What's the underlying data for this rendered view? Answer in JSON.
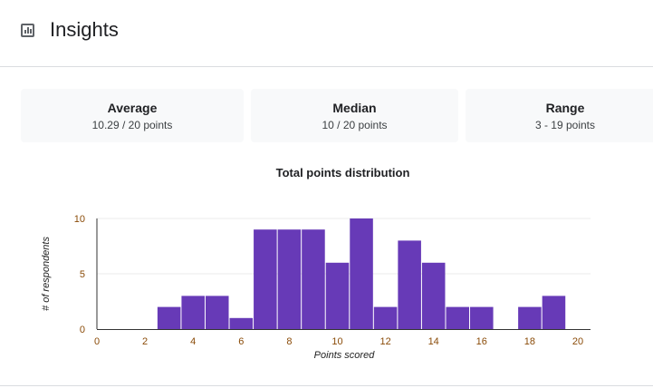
{
  "header": {
    "title": "Insights",
    "icon": "bar-chart-icon"
  },
  "stats": [
    {
      "label": "Average",
      "value": "10.29 / 20 points"
    },
    {
      "label": "Median",
      "value": "10 / 20 points"
    },
    {
      "label": "Range",
      "value": "3 - 19 points"
    }
  ],
  "chart_data": {
    "type": "bar",
    "title": "Total points distribution",
    "xlabel": "Points scored",
    "ylabel": "# of respondents",
    "x": [
      3,
      4,
      5,
      6,
      7,
      8,
      9,
      10,
      11,
      12,
      13,
      14,
      15,
      16,
      17,
      18,
      19
    ],
    "values": [
      2,
      3,
      3,
      1,
      9,
      9,
      9,
      6,
      10,
      2,
      8,
      6,
      2,
      2,
      0,
      2,
      3
    ],
    "xlim": [
      0,
      20
    ],
    "ylim": [
      0,
      10
    ],
    "xticks": [
      "0",
      "2",
      "4",
      "6",
      "8",
      "10",
      "12",
      "14",
      "16",
      "18",
      "20"
    ],
    "yticks": [
      "0",
      "5",
      "10"
    ],
    "grid": true,
    "bar_color": "#673ab7"
  }
}
